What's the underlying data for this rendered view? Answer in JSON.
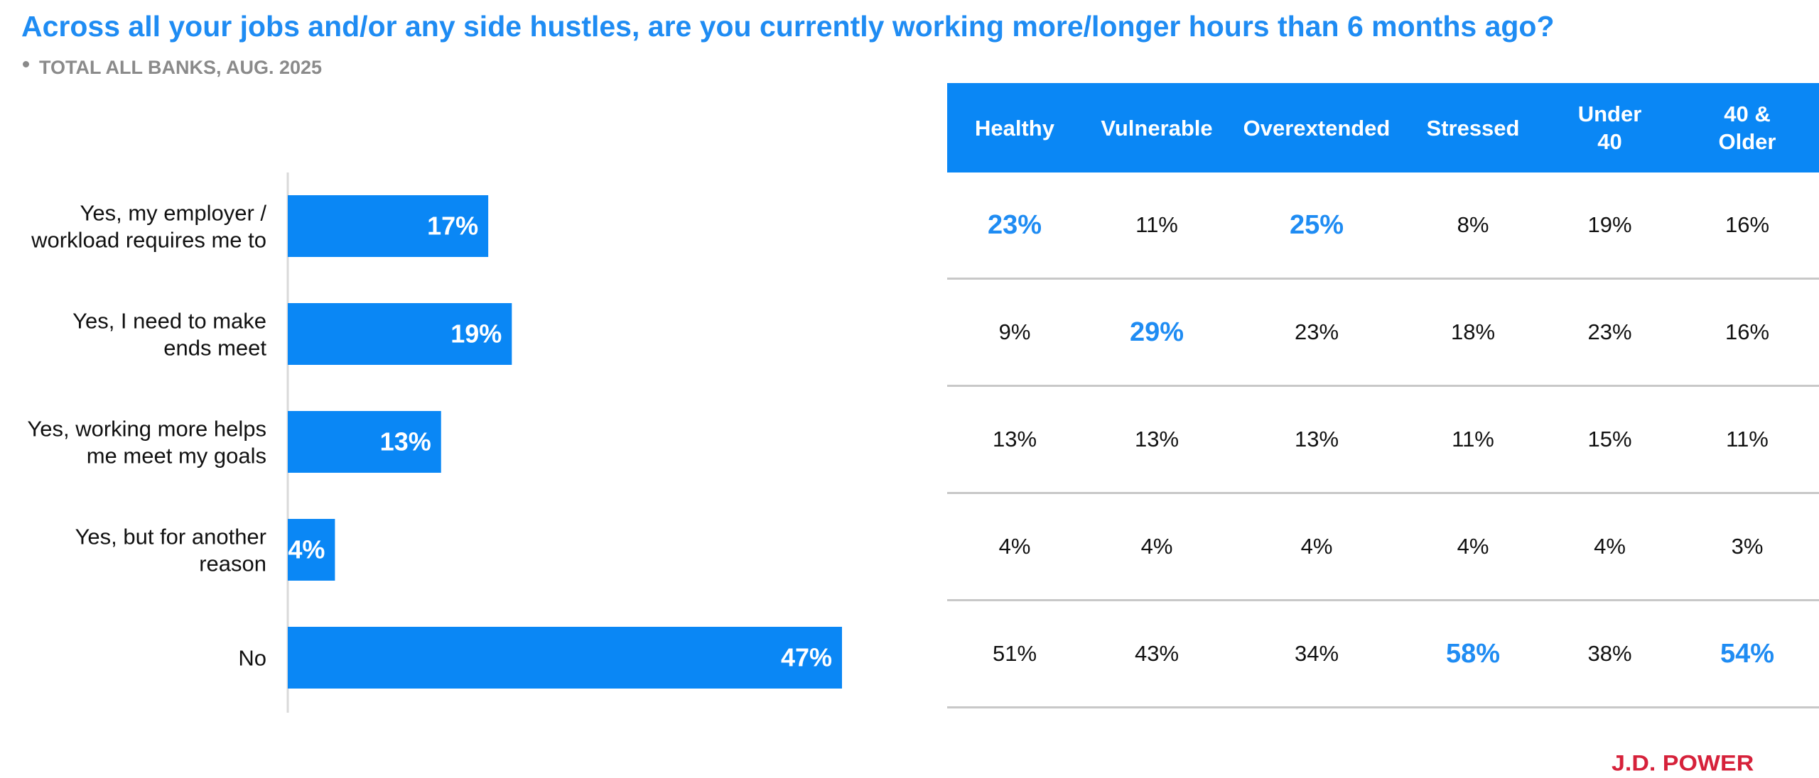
{
  "header": {
    "title": "Across all your jobs and/or any side hustles, are you currently working more/longer hours than 6 months ago?",
    "subtitle": "TOTAL ALL BANKS, AUG. 2025"
  },
  "colors": {
    "accent": "#1f8cf3",
    "bar": "#0a87f5",
    "header_bg": "#0a87f5",
    "brand": "#d6213a"
  },
  "chart_data": {
    "type": "bar",
    "orientation": "horizontal",
    "title": "Across all your jobs and/or any side hustles, are you currently working more/longer hours than 6 months ago?",
    "subtitle": "TOTAL ALL BANKS, AUG. 2025",
    "categories": [
      [
        "Yes, my employer /",
        "workload requires me to"
      ],
      [
        "Yes, I need to make",
        "ends meet"
      ],
      [
        "Yes, working more helps",
        "me meet my goals"
      ],
      [
        "Yes, but for another",
        "reason"
      ],
      [
        "No"
      ]
    ],
    "values": [
      17,
      19,
      13,
      4,
      47
    ],
    "value_labels": [
      "17%",
      "19%",
      "13%",
      "4%",
      "47%"
    ],
    "unit": "%",
    "xlim": [
      0,
      50
    ],
    "grid": false,
    "legend": "none"
  },
  "table": {
    "columns": [
      {
        "lines": [
          "Healthy"
        ]
      },
      {
        "lines": [
          "Vulnerable"
        ]
      },
      {
        "lines": [
          "Overextended"
        ]
      },
      {
        "lines": [
          "Stressed"
        ]
      },
      {
        "lines": [
          "Under",
          "40"
        ]
      },
      {
        "lines": [
          "40 &",
          "Older"
        ]
      }
    ],
    "rows": [
      [
        {
          "v": "23%",
          "hl": true
        },
        {
          "v": "11%"
        },
        {
          "v": "25%",
          "hl": true
        },
        {
          "v": "8%"
        },
        {
          "v": "19%"
        },
        {
          "v": "16%"
        }
      ],
      [
        {
          "v": "9%"
        },
        {
          "v": "29%",
          "hl": true
        },
        {
          "v": "23%"
        },
        {
          "v": "18%"
        },
        {
          "v": "23%"
        },
        {
          "v": "16%"
        }
      ],
      [
        {
          "v": "13%"
        },
        {
          "v": "13%"
        },
        {
          "v": "13%"
        },
        {
          "v": "11%"
        },
        {
          "v": "15%"
        },
        {
          "v": "11%"
        }
      ],
      [
        {
          "v": "4%"
        },
        {
          "v": "4%"
        },
        {
          "v": "4%"
        },
        {
          "v": "4%"
        },
        {
          "v": "4%"
        },
        {
          "v": "3%"
        }
      ],
      [
        {
          "v": "51%"
        },
        {
          "v": "43%"
        },
        {
          "v": "34%"
        },
        {
          "v": "58%",
          "hl": true
        },
        {
          "v": "38%"
        },
        {
          "v": "54%",
          "hl": true
        }
      ]
    ]
  },
  "brand": {
    "logo_text": "J.D. POWER"
  }
}
